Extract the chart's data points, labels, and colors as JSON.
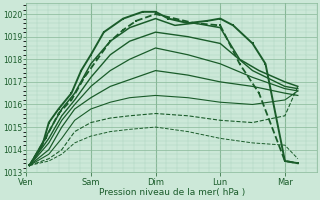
{
  "xlabel": "Pression niveau de la mer( hPa )",
  "bg_color": "#cce8d8",
  "plot_bg_color": "#cce8d8",
  "grid_major_color": "#88b898",
  "grid_minor_color": "#aad4bc",
  "line_color_dark": "#1a5c2a",
  "ylim": [
    1013.0,
    1020.5
  ],
  "yticks": [
    1013,
    1014,
    1015,
    1016,
    1017,
    1018,
    1019,
    1020
  ],
  "x_days": [
    "Ven",
    "Sam",
    "Dim",
    "Lun",
    "Mar"
  ],
  "x_day_pos": [
    0,
    1,
    2,
    3,
    4
  ],
  "xlim": [
    0,
    4.5
  ],
  "figsize": [
    3.2,
    2.0
  ],
  "dpi": 100,
  "lines": [
    {
      "x": [
        0.05,
        0.25,
        0.35,
        0.5,
        0.7,
        0.85,
        1.0,
        1.2,
        1.5,
        1.8,
        2.0,
        2.2,
        2.5,
        2.8,
        3.0,
        3.2,
        3.5,
        3.7,
        4.0,
        4.2
      ],
      "y": [
        1013.3,
        1014.2,
        1015.2,
        1015.8,
        1016.5,
        1017.5,
        1018.2,
        1019.2,
        1019.8,
        1020.1,
        1020.1,
        1019.8,
        1019.6,
        1019.7,
        1019.8,
        1019.5,
        1018.7,
        1017.8,
        1013.5,
        1013.4
      ],
      "style": "-",
      "lw": 1.4,
      "color": "#1a5c2a",
      "marker": "s",
      "ms": 2.0
    },
    {
      "x": [
        0.05,
        0.3,
        0.5,
        0.7,
        0.9,
        1.1,
        1.3,
        1.5,
        1.7,
        2.0,
        2.3,
        2.6,
        3.0,
        3.3,
        3.6,
        4.0,
        4.2
      ],
      "y": [
        1013.3,
        1014.5,
        1015.6,
        1016.2,
        1017.2,
        1018.0,
        1018.8,
        1019.3,
        1019.7,
        1020.0,
        1019.8,
        1019.6,
        1019.5,
        1017.8,
        1016.5,
        1013.5,
        1013.4
      ],
      "style": "--",
      "lw": 1.3,
      "color": "#1a5c2a",
      "marker": "s",
      "ms": 2.0
    },
    {
      "x": [
        0.05,
        0.35,
        0.55,
        0.75,
        1.0,
        1.3,
        1.6,
        2.0,
        2.3,
        2.6,
        3.0,
        3.3,
        3.6,
        4.0,
        4.2
      ],
      "y": [
        1013.3,
        1014.8,
        1015.8,
        1016.5,
        1017.8,
        1018.8,
        1019.4,
        1019.8,
        1019.5,
        1019.6,
        1019.4,
        1018.0,
        1017.5,
        1017.0,
        1016.8
      ],
      "style": "-",
      "lw": 1.1,
      "color": "#1a5c2a",
      "marker": null,
      "ms": 0
    },
    {
      "x": [
        0.05,
        0.35,
        0.55,
        0.75,
        1.0,
        1.3,
        1.6,
        2.0,
        2.5,
        3.0,
        3.5,
        4.0,
        4.2
      ],
      "y": [
        1013.3,
        1014.5,
        1015.5,
        1016.2,
        1017.2,
        1018.2,
        1018.8,
        1019.2,
        1019.0,
        1018.7,
        1017.5,
        1016.8,
        1016.7
      ],
      "style": "-",
      "lw": 1.0,
      "color": "#1a5c2a",
      "marker": null,
      "ms": 0
    },
    {
      "x": [
        0.05,
        0.35,
        0.55,
        0.75,
        1.0,
        1.3,
        1.6,
        2.0,
        2.5,
        3.0,
        3.5,
        4.0,
        4.2
      ],
      "y": [
        1013.3,
        1014.3,
        1015.3,
        1016.0,
        1016.8,
        1017.5,
        1018.0,
        1018.5,
        1018.2,
        1017.8,
        1017.2,
        1016.7,
        1016.6
      ],
      "style": "-",
      "lw": 0.9,
      "color": "#1a5c2a",
      "marker": null,
      "ms": 0
    },
    {
      "x": [
        0.05,
        0.35,
        0.55,
        0.75,
        1.0,
        1.3,
        1.6,
        2.0,
        2.5,
        3.0,
        3.5,
        4.0,
        4.2
      ],
      "y": [
        1013.3,
        1014.0,
        1015.0,
        1015.8,
        1016.3,
        1016.8,
        1017.1,
        1017.5,
        1017.3,
        1017.0,
        1016.8,
        1016.5,
        1016.4
      ],
      "style": "-",
      "lw": 0.9,
      "color": "#1a5c2a",
      "marker": null,
      "ms": 0
    },
    {
      "x": [
        0.05,
        0.35,
        0.55,
        0.75,
        1.0,
        1.3,
        1.6,
        2.0,
        2.5,
        3.0,
        3.5,
        4.0,
        4.2
      ],
      "y": [
        1013.3,
        1013.8,
        1014.5,
        1015.3,
        1015.8,
        1016.1,
        1016.3,
        1016.4,
        1016.3,
        1016.1,
        1016.0,
        1016.2,
        1016.6
      ],
      "style": "-",
      "lw": 0.8,
      "color": "#1a5c2a",
      "marker": null,
      "ms": 0
    },
    {
      "x": [
        0.05,
        0.35,
        0.55,
        0.75,
        1.0,
        1.3,
        1.6,
        2.0,
        2.5,
        3.0,
        3.5,
        4.0,
        4.2
      ],
      "y": [
        1013.3,
        1013.6,
        1014.0,
        1014.8,
        1015.2,
        1015.4,
        1015.5,
        1015.6,
        1015.5,
        1015.3,
        1015.2,
        1015.5,
        1016.8
      ],
      "style": "--",
      "lw": 0.8,
      "color": "#1a5c2a",
      "marker": null,
      "ms": 0
    },
    {
      "x": [
        0.05,
        0.35,
        0.55,
        0.75,
        1.0,
        1.3,
        1.6,
        2.0,
        2.5,
        3.0,
        3.5,
        4.0,
        4.2
      ],
      "y": [
        1013.3,
        1013.5,
        1013.8,
        1014.3,
        1014.6,
        1014.8,
        1014.9,
        1015.0,
        1014.8,
        1014.5,
        1014.3,
        1014.2,
        1013.6
      ],
      "style": "--",
      "lw": 0.7,
      "color": "#1a5c2a",
      "marker": null,
      "ms": 0
    }
  ]
}
